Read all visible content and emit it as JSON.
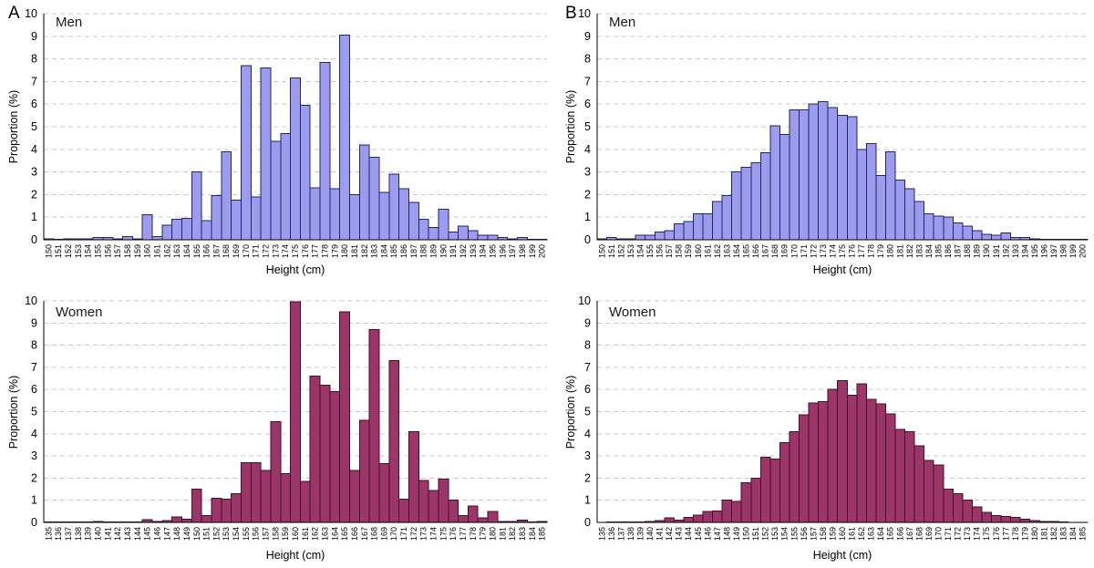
{
  "figure": {
    "panel_a_label": "A",
    "panel_b_label": "B",
    "axis": {
      "xlabel": "Height (cm)",
      "ylabel": "Proportion (%)",
      "y_ticks": [
        0,
        1,
        2,
        3,
        4,
        5,
        6,
        7,
        8,
        9,
        10
      ],
      "ylim": [
        0,
        10
      ]
    },
    "colors": {
      "men_fill": "#9b9bef",
      "men_border": "#26265c",
      "women_fill": "#9c3568",
      "women_border": "#3f1029",
      "gridline": "#c8c8c8",
      "axis_line": "#000000",
      "text": "#000000",
      "background": "#ffffff"
    }
  },
  "chart_data": [
    {
      "id": "panel_a_men",
      "type": "bar",
      "panel": "A",
      "title": "Men",
      "xlabel": "Height (cm)",
      "ylabel": "Proportion (%)",
      "ylim": [
        0,
        10
      ],
      "grid": "horizontal-dashed",
      "legend": "none",
      "categories": [
        "150",
        "151",
        "152",
        "153",
        "154",
        "155",
        "156",
        "157",
        "158",
        "159",
        "160",
        "161",
        "162",
        "163",
        "164",
        "165",
        "166",
        "167",
        "168",
        "169",
        "170",
        "171",
        "172",
        "173",
        "174",
        "175",
        "176",
        "177",
        "178",
        "179",
        "180",
        "181",
        "182",
        "183",
        "184",
        "185",
        "186",
        "187",
        "188",
        "189",
        "190",
        "191",
        "192",
        "193",
        "194",
        "195",
        "196",
        "197",
        "198",
        "199",
        "200"
      ],
      "values": [
        0.05,
        0.02,
        0.05,
        0.05,
        0.05,
        0.1,
        0.1,
        0.05,
        0.15,
        0.05,
        1.1,
        0.15,
        0.65,
        0.9,
        0.95,
        3.0,
        0.85,
        1.95,
        3.9,
        1.75,
        7.7,
        1.9,
        7.6,
        4.35,
        4.7,
        7.15,
        5.95,
        2.3,
        7.85,
        2.25,
        9.05,
        2.0,
        4.2,
        3.65,
        2.1,
        2.9,
        2.25,
        1.65,
        0.9,
        0.55,
        1.35,
        0.35,
        0.6,
        0.4,
        0.2,
        0.2,
        0.1,
        0.05,
        0.1,
        0.02,
        0.02
      ]
    },
    {
      "id": "panel_a_women",
      "type": "bar",
      "panel": "A",
      "title": "Women",
      "xlabel": "Height (cm)",
      "ylabel": "Proportion (%)",
      "ylim": [
        0,
        10
      ],
      "grid": "horizontal-dashed",
      "legend": "none",
      "categories": [
        "135",
        "136",
        "137",
        "138",
        "139",
        "140",
        "141",
        "142",
        "143",
        "144",
        "145",
        "146",
        "147",
        "148",
        "149",
        "150",
        "151",
        "152",
        "153",
        "154",
        "155",
        "156",
        "157",
        "158",
        "159",
        "160",
        "161",
        "162",
        "163",
        "164",
        "165",
        "166",
        "167",
        "168",
        "169",
        "170",
        "171",
        "172",
        "173",
        "174",
        "175",
        "176",
        "177",
        "178",
        "179",
        "180",
        "181",
        "182",
        "183",
        "184",
        "185"
      ],
      "values": [
        0.02,
        0.02,
        0.02,
        0.02,
        0.02,
        0.05,
        0.02,
        0.03,
        0.03,
        0.03,
        0.12,
        0.05,
        0.08,
        0.25,
        0.15,
        1.5,
        0.3,
        1.1,
        1.05,
        1.3,
        2.7,
        2.7,
        2.35,
        4.55,
        2.2,
        9.95,
        1.85,
        6.6,
        6.2,
        5.9,
        9.5,
        2.35,
        4.6,
        8.7,
        2.65,
        7.3,
        1.05,
        4.1,
        1.9,
        1.45,
        1.95,
        1.0,
        0.3,
        0.75,
        0.2,
        0.5,
        0.05,
        0.05,
        0.1,
        0.02,
        0.05
      ]
    },
    {
      "id": "panel_b_men",
      "type": "bar",
      "panel": "B",
      "title": "Men",
      "xlabel": "Height (cm)",
      "ylabel": "Proportion (%)",
      "ylim": [
        0,
        10
      ],
      "grid": "horizontal-dashed",
      "legend": "none",
      "categories": [
        "150",
        "151",
        "152",
        "153",
        "154",
        "155",
        "156",
        "157",
        "158",
        "159",
        "160",
        "161",
        "162",
        "163",
        "164",
        "165",
        "166",
        "167",
        "168",
        "169",
        "170",
        "171",
        "172",
        "173",
        "174",
        "175",
        "176",
        "177",
        "178",
        "179",
        "180",
        "181",
        "182",
        "183",
        "184",
        "185",
        "186",
        "187",
        "188",
        "189",
        "190",
        "191",
        "192",
        "193",
        "194",
        "195",
        "196",
        "197",
        "198",
        "199",
        "200"
      ],
      "values": [
        0.05,
        0.1,
        0.05,
        0.05,
        0.2,
        0.2,
        0.35,
        0.4,
        0.7,
        0.8,
        1.15,
        1.15,
        1.7,
        1.95,
        3.0,
        3.2,
        3.4,
        3.85,
        5.05,
        4.65,
        5.75,
        5.75,
        6.0,
        6.1,
        5.85,
        5.5,
        5.45,
        4.0,
        4.25,
        2.85,
        3.9,
        2.65,
        2.25,
        1.7,
        1.15,
        1.05,
        1.0,
        0.75,
        0.6,
        0.4,
        0.25,
        0.2,
        0.3,
        0.1,
        0.1,
        0.05,
        0.03,
        0.03,
        0.02,
        0.02,
        0.02
      ]
    },
    {
      "id": "panel_b_women",
      "type": "bar",
      "panel": "B",
      "title": "Women",
      "xlabel": "Height (cm)",
      "ylabel": "Proportion (%)",
      "ylim": [
        0,
        10
      ],
      "grid": "horizontal-dashed",
      "legend": "none",
      "categories": [
        "135",
        "136",
        "137",
        "138",
        "139",
        "140",
        "141",
        "142",
        "143",
        "144",
        "145",
        "146",
        "147",
        "148",
        "149",
        "150",
        "151",
        "152",
        "153",
        "154",
        "155",
        "156",
        "157",
        "158",
        "159",
        "160",
        "161",
        "162",
        "163",
        "164",
        "165",
        "166",
        "167",
        "168",
        "169",
        "170",
        "171",
        "172",
        "173",
        "174",
        "175",
        "176",
        "177",
        "178",
        "179",
        "180",
        "181",
        "182",
        "183",
        "184",
        "185"
      ],
      "values": [
        0.01,
        0.02,
        0.02,
        0.02,
        0.02,
        0.05,
        0.08,
        0.2,
        0.1,
        0.22,
        0.32,
        0.5,
        0.52,
        1.0,
        0.95,
        1.8,
        2.0,
        2.95,
        2.85,
        3.6,
        4.1,
        4.85,
        5.4,
        5.45,
        6.0,
        6.4,
        5.75,
        6.25,
        5.55,
        5.35,
        4.9,
        4.2,
        4.1,
        3.45,
        2.8,
        2.6,
        1.5,
        1.3,
        1.0,
        0.7,
        0.45,
        0.3,
        0.27,
        0.23,
        0.15,
        0.08,
        0.05,
        0.05,
        0.02,
        0.01,
        0.01
      ]
    }
  ]
}
